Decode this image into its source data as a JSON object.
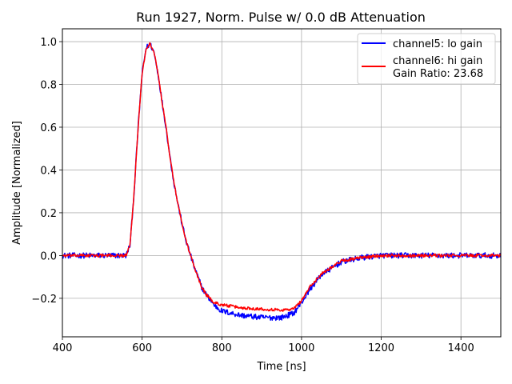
{
  "chart_data": {
    "type": "line",
    "title": "Run 1927, Norm. Pulse w/ 0.0 dB Attenuation",
    "xlabel": "Time [ns]",
    "ylabel": "Amplitude [Normalized]",
    "xlim": [
      400,
      1500
    ],
    "ylim": [
      -0.38,
      1.06
    ],
    "xticks": [
      400,
      600,
      800,
      1000,
      1200,
      1400
    ],
    "yticks": [
      -0.2,
      0.0,
      0.2,
      0.4,
      0.6,
      0.8,
      1.0
    ],
    "xtick_labels": [
      "400",
      "600",
      "800",
      "1000",
      "1200",
      "1400"
    ],
    "ytick_labels": [
      "−0.2",
      "0.0",
      "0.2",
      "0.4",
      "0.6",
      "0.8",
      "1.0"
    ],
    "grid": true,
    "legend_position": "top-right",
    "series": [
      {
        "name": "channel5: lo gain",
        "color": "#0000ff",
        "noise": 0.013,
        "x": [
          400,
          560,
          570,
          580,
          590,
          600,
          610,
          620,
          630,
          640,
          650,
          660,
          670,
          680,
          690,
          700,
          710,
          720,
          730,
          740,
          750,
          760,
          780,
          800,
          850,
          900,
          950,
          980,
          1000,
          1020,
          1050,
          1100,
          1150,
          1200,
          1300,
          1400,
          1500
        ],
        "y": [
          0.0,
          0.0,
          0.05,
          0.3,
          0.6,
          0.85,
          0.97,
          0.99,
          0.95,
          0.85,
          0.72,
          0.6,
          0.46,
          0.34,
          0.24,
          0.15,
          0.07,
          0.01,
          -0.05,
          -0.1,
          -0.15,
          -0.18,
          -0.23,
          -0.26,
          -0.28,
          -0.29,
          -0.29,
          -0.27,
          -0.22,
          -0.16,
          -0.09,
          -0.03,
          -0.01,
          0.0,
          0.0,
          0.0,
          0.0
        ]
      },
      {
        "name": "channel6: hi gain",
        "color": "#ff0000",
        "noise": 0.007,
        "x": [
          400,
          560,
          570,
          580,
          590,
          600,
          610,
          620,
          630,
          640,
          650,
          660,
          670,
          680,
          690,
          700,
          710,
          720,
          730,
          740,
          750,
          760,
          780,
          800,
          850,
          900,
          950,
          980,
          1000,
          1020,
          1050,
          1100,
          1150,
          1200,
          1300,
          1400,
          1500
        ],
        "y": [
          0.0,
          0.0,
          0.05,
          0.3,
          0.6,
          0.85,
          0.97,
          0.99,
          0.95,
          0.85,
          0.72,
          0.6,
          0.46,
          0.34,
          0.24,
          0.15,
          0.07,
          0.01,
          -0.05,
          -0.1,
          -0.15,
          -0.18,
          -0.22,
          -0.23,
          -0.245,
          -0.25,
          -0.255,
          -0.25,
          -0.21,
          -0.15,
          -0.085,
          -0.025,
          -0.01,
          0.0,
          0.0,
          0.0,
          0.0
        ]
      }
    ],
    "legend": {
      "entries": [
        "channel5: lo gain",
        "channel6: hi gain"
      ],
      "extra_line": "Gain Ratio: 23.68"
    }
  }
}
